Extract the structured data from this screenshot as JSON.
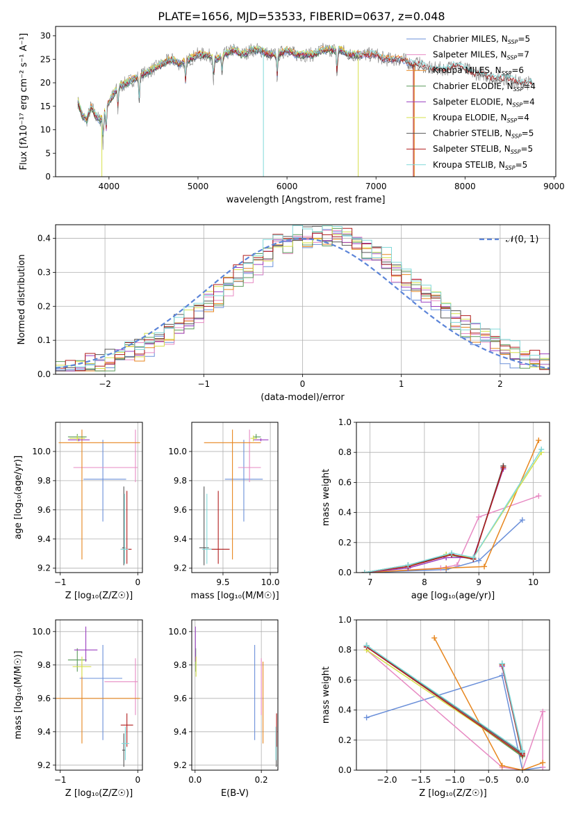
{
  "figure_title": "PLATE=1656, MJD=53533, FIBERID=0637, z=0.048",
  "models": [
    {
      "name": "Chabrier MILES",
      "nssp": "5",
      "color": "#6a8fd9"
    },
    {
      "name": "Salpeter MILES",
      "nssp": "7",
      "color": "#e78ac3"
    },
    {
      "name": "Kroupa MILES",
      "nssp": "6",
      "color": "#e7861e"
    },
    {
      "name": "Chabrier ELODIE",
      "nssp": "4",
      "color": "#5a9a5a"
    },
    {
      "name": "Salpeter ELODIE",
      "nssp": "4",
      "color": "#9a3fbf"
    },
    {
      "name": "Kroupa ELODIE",
      "nssp": "4",
      "color": "#d6e04a"
    },
    {
      "name": "Chabrier STELIB",
      "nssp": "5",
      "color": "#555555"
    },
    {
      "name": "Salpeter STELIB",
      "nssp": "5",
      "color": "#b01c1c"
    },
    {
      "name": "Kroupa STELIB",
      "nssp": "5",
      "color": "#7fd8d8"
    }
  ],
  "chart_data": [
    {
      "id": "spectrum",
      "type": "line",
      "xlabel": "wavelength [Angstrom, rest frame]",
      "ylabel": "Flux [fλ10⁻¹⁷ erg cm⁻² s⁻¹ A⁻¹]",
      "xlim": [
        3400,
        9020
      ],
      "ylim": [
        0,
        32
      ],
      "xticks": [
        4000,
        5000,
        6000,
        7000,
        8000,
        9000
      ],
      "yticks": [
        0,
        5,
        10,
        15,
        20,
        25,
        30
      ],
      "legend_position": "top-right",
      "data_x": [
        3650,
        3700,
        3750,
        3800,
        3850,
        3900,
        3950,
        4000,
        4100,
        4200,
        4300,
        4400,
        4500,
        4600,
        4700,
        4800,
        4900,
        5000,
        5100,
        5200,
        5300,
        5400,
        5500,
        5600,
        5700,
        5800,
        5900,
        6000,
        6100,
        6200,
        6300,
        6400,
        6500,
        6600,
        6700,
        6800,
        6900,
        7000,
        7100,
        7200,
        7300,
        7400,
        7500,
        7600,
        7700,
        7800,
        7900,
        8000,
        8100,
        8200,
        8300,
        8400,
        8500,
        8600,
        8700,
        8760
      ],
      "data_y": [
        16,
        13,
        12,
        15,
        13,
        12,
        14,
        16,
        19,
        20,
        21,
        22,
        23,
        24,
        25,
        24,
        25,
        26,
        26,
        25,
        26,
        27,
        26,
        27,
        27,
        26,
        26,
        27,
        26,
        26,
        26,
        27,
        27,
        27,
        26,
        26,
        26,
        26,
        25,
        25,
        25,
        24,
        24,
        23,
        23,
        23,
        24,
        23,
        22,
        22,
        21,
        21,
        21,
        20,
        20,
        20
      ],
      "absorptions": [
        {
          "x": 3934,
          "depth": 7
        },
        {
          "x": 3968,
          "depth": 6
        },
        {
          "x": 4101,
          "depth": 5
        },
        {
          "x": 4340,
          "depth": 6
        },
        {
          "x": 4861,
          "depth": 5
        },
        {
          "x": 5175,
          "depth": 5
        },
        {
          "x": 5270,
          "depth": 4
        },
        {
          "x": 5890,
          "depth": 5
        },
        {
          "x": 6563,
          "depth": 6
        }
      ],
      "series_drops": [
        {
          "model": "Kroupa ELODIE",
          "x": 3920,
          "to": 0
        },
        {
          "model": "Kroupa STELIB",
          "x": 5735,
          "to": 0
        },
        {
          "model": "Kroupa ELODIE",
          "x": 6800,
          "to": 0
        },
        {
          "model": "Salpeter STELIB",
          "x": 7420,
          "to": 0
        },
        {
          "model": "Kroupa MILES",
          "x": 7430,
          "to": 0
        }
      ],
      "model_x_ranges": [
        [
          3650,
          7400
        ],
        [
          3650,
          7400
        ],
        [
          3650,
          7400
        ],
        [
          3650,
          6800
        ],
        [
          3650,
          6800
        ],
        [
          3650,
          6800
        ],
        [
          3650,
          8760
        ],
        [
          3650,
          8760
        ],
        [
          3650,
          8760
        ]
      ]
    },
    {
      "id": "residuals",
      "type": "line",
      "xlabel": "(data-model)/error",
      "ylabel": "Normed distribution",
      "xlim": [
        -2.5,
        2.5
      ],
      "ylim": [
        0,
        0.44
      ],
      "xticks": [
        -2,
        -1,
        0,
        1,
        2
      ],
      "yticks": [
        0.0,
        0.1,
        0.2,
        0.3,
        0.4
      ],
      "legend": "𝒩(0, 1)",
      "legend_position": "top-right",
      "bin_width": 0.1,
      "curve": "normal",
      "curve_color": "#5b84d8"
    },
    {
      "id": "age-vs-Z",
      "type": "errorbar",
      "xlabel": "Z [log₁₀(Z/Z☉)]",
      "ylabel": "age  [log₁₀(age/yr)]",
      "xlim": [
        -1.06,
        0.06
      ],
      "ylim": [
        9.17,
        10.2
      ],
      "xticks": [
        -1,
        0
      ],
      "yticks": [
        9.2,
        9.4,
        9.6,
        9.8,
        10.0
      ],
      "points": [
        {
          "x": -0.45,
          "y": 9.81,
          "xerr": [
            0.25,
            0.3
          ],
          "yerr": [
            0.29,
            0.27
          ]
        },
        {
          "x": -0.03,
          "y": 9.89,
          "xerr": [
            0.8,
            0.03
          ],
          "yerr": [
            0.1,
            0.26
          ]
        },
        {
          "x": -0.72,
          "y": 10.06,
          "xerr": [
            0.3,
            0.75
          ],
          "yerr": [
            0.8,
            0.09
          ]
        },
        {
          "x": -0.78,
          "y": 10.1,
          "xerr": [
            0.12,
            0.12
          ],
          "yerr": [
            0.01,
            0.02
          ]
        },
        {
          "x": -0.76,
          "y": 10.08,
          "xerr": [
            0.14,
            0.14
          ],
          "yerr": [
            0.01,
            0.01
          ]
        },
        {
          "x": -0.78,
          "y": 10.09,
          "xerr": [
            0.1,
            0.1
          ],
          "yerr": [
            0.02,
            0.02
          ]
        },
        {
          "x": -0.18,
          "y": 9.34,
          "xerr": [
            0.02,
            0.02
          ],
          "yerr": [
            0.12,
            0.42
          ]
        },
        {
          "x": -0.14,
          "y": 9.33,
          "xerr": [
            0.08,
            0.06
          ],
          "yerr": [
            0.1,
            0.4
          ]
        },
        {
          "x": -0.17,
          "y": 9.33,
          "xerr": [
            0.05,
            0.05
          ],
          "yerr": [
            0.1,
            0.38
          ]
        }
      ]
    },
    {
      "id": "age-vs-mass",
      "type": "errorbar",
      "xlabel": "mass [log₁₀(M/M☉)]",
      "ylabel": "",
      "xlim": [
        9.17,
        10.08
      ],
      "ylim": [
        9.17,
        10.2
      ],
      "xticks": [
        9.5,
        10.0
      ],
      "yticks": [
        9.2,
        9.4,
        9.6,
        9.8,
        10.0
      ],
      "points": [
        {
          "x": 9.72,
          "y": 9.81,
          "xerr": [
            0.2,
            0.2
          ],
          "yerr": [
            0.29,
            0.27
          ]
        },
        {
          "x": 9.78,
          "y": 9.89,
          "xerr": [
            0.12,
            0.12
          ],
          "yerr": [
            0.1,
            0.26
          ]
        },
        {
          "x": 9.6,
          "y": 10.06,
          "xerr": [
            0.3,
            0.3
          ],
          "yerr": [
            0.8,
            0.09
          ]
        },
        {
          "x": 9.85,
          "y": 10.1,
          "xerr": [
            0.03,
            0.05
          ],
          "yerr": [
            0.01,
            0.02
          ]
        },
        {
          "x": 9.9,
          "y": 10.08,
          "xerr": [
            0.08,
            0.08
          ],
          "yerr": [
            0.01,
            0.01
          ]
        },
        {
          "x": 9.82,
          "y": 10.09,
          "xerr": [
            0.03,
            0.04
          ],
          "yerr": [
            0.02,
            0.02
          ]
        },
        {
          "x": 9.3,
          "y": 9.34,
          "xerr": [
            0.05,
            0.05
          ],
          "yerr": [
            0.12,
            0.42
          ]
        },
        {
          "x": 9.45,
          "y": 9.33,
          "xerr": [
            0.12,
            0.12
          ],
          "yerr": [
            0.1,
            0.4
          ]
        },
        {
          "x": 9.33,
          "y": 9.33,
          "xerr": [
            0.05,
            0.05
          ],
          "yerr": [
            0.1,
            0.38
          ]
        }
      ]
    },
    {
      "id": "mw-vs-age",
      "type": "line",
      "xlabel": "age  [log₁₀(age/yr)]",
      "ylabel": "mass weight",
      "xlim": [
        6.75,
        10.3
      ],
      "ylim": [
        0,
        1.0
      ],
      "xticks": [
        7,
        8,
        9,
        10
      ],
      "yticks": [
        0.0,
        0.2,
        0.4,
        0.6,
        0.8,
        1.0
      ],
      "series": [
        {
          "model": "Chabrier MILES",
          "x": [
            6.9,
            8.4,
            9.0,
            9.8
          ],
          "y": [
            0.0,
            0.02,
            0.08,
            0.35
          ]
        },
        {
          "model": "Salpeter MILES",
          "x": [
            6.9,
            8.3,
            8.6,
            9.0,
            10.1
          ],
          "y": [
            0.0,
            0.03,
            0.05,
            0.37,
            0.51
          ]
        },
        {
          "model": "Kroupa MILES",
          "x": [
            6.9,
            8.4,
            9.1,
            10.1
          ],
          "y": [
            0.0,
            0.03,
            0.04,
            0.88
          ]
        },
        {
          "model": "Chabrier ELODIE",
          "x": [
            6.9,
            7.7,
            8.4,
            8.9,
            9.45
          ],
          "y": [
            0.0,
            0.04,
            0.12,
            0.09,
            0.71
          ]
        },
        {
          "model": "Salpeter ELODIE",
          "x": [
            6.9,
            7.7,
            8.4,
            8.9,
            9.45
          ],
          "y": [
            0.0,
            0.03,
            0.1,
            0.1,
            0.69
          ]
        },
        {
          "model": "Kroupa ELODIE",
          "x": [
            6.9,
            7.7,
            8.4,
            8.9,
            10.15
          ],
          "y": [
            0.0,
            0.04,
            0.12,
            0.1,
            0.8
          ]
        },
        {
          "model": "Chabrier STELIB",
          "x": [
            6.9,
            7.7,
            8.5,
            8.9,
            9.45
          ],
          "y": [
            0.0,
            0.05,
            0.12,
            0.09,
            0.71
          ]
        },
        {
          "model": "Salpeter STELIB",
          "x": [
            6.9,
            7.7,
            8.5,
            8.9,
            9.45
          ],
          "y": [
            0.0,
            0.04,
            0.12,
            0.09,
            0.7
          ]
        },
        {
          "model": "Kroupa STELIB",
          "x": [
            6.9,
            7.7,
            8.5,
            8.9,
            10.15
          ],
          "y": [
            0.0,
            0.05,
            0.13,
            0.1,
            0.82
          ]
        }
      ]
    },
    {
      "id": "mass-vs-Z",
      "type": "errorbar",
      "xlabel": "Z [log₁₀(Z/Z☉)]",
      "ylabel": "mass [log₁₀(M/M☉)]",
      "xlim": [
        -1.06,
        0.06
      ],
      "ylim": [
        9.17,
        10.07
      ],
      "xticks": [
        -1,
        0
      ],
      "yticks": [
        9.2,
        9.4,
        9.6,
        9.8,
        10.0
      ],
      "points": [
        {
          "x": -0.45,
          "y": 9.72,
          "xerr": [
            0.3,
            0.25
          ],
          "yerr": [
            0.37,
            0.2
          ]
        },
        {
          "x": -0.03,
          "y": 9.7,
          "xerr": [
            0.4,
            0.03
          ],
          "yerr": [
            0.2,
            0.14
          ]
        },
        {
          "x": -0.72,
          "y": 9.6,
          "xerr": [
            0.35,
            0.75
          ],
          "yerr": [
            0.27,
            0.22
          ]
        },
        {
          "x": -0.78,
          "y": 9.83,
          "xerr": [
            0.12,
            0.12
          ],
          "yerr": [
            0.07,
            0.07
          ]
        },
        {
          "x": -0.67,
          "y": 9.89,
          "xerr": [
            0.15,
            0.15
          ],
          "yerr": [
            0.07,
            0.14
          ]
        },
        {
          "x": -0.72,
          "y": 9.79,
          "xerr": [
            0.12,
            0.12
          ],
          "yerr": [
            0.06,
            0.06
          ]
        },
        {
          "x": -0.18,
          "y": 9.29,
          "xerr": [
            0.02,
            0.02
          ],
          "yerr": [
            0.1,
            0.1
          ]
        },
        {
          "x": -0.14,
          "y": 9.44,
          "xerr": [
            0.08,
            0.08
          ],
          "yerr": [
            0.13,
            0.07
          ]
        },
        {
          "x": -0.16,
          "y": 9.33,
          "xerr": [
            0.05,
            0.05
          ],
          "yerr": [
            0.1,
            0.1
          ]
        }
      ]
    },
    {
      "id": "mass-vs-ebv",
      "type": "errorbar",
      "xlabel": "E(B-V)",
      "ylabel": "",
      "xlim": [
        -0.01,
        0.25
      ],
      "ylim": [
        9.17,
        10.07
      ],
      "xticks": [
        0.0,
        0.2
      ],
      "yticks": [
        9.2,
        9.4,
        9.6,
        9.8,
        10.0
      ],
      "points": [
        {
          "x": 0.18,
          "y": 9.72,
          "xerr": [
            0,
            0
          ],
          "yerr": [
            0.37,
            0.2
          ]
        },
        {
          "x": 0.2,
          "y": 9.7,
          "xerr": [
            0,
            0
          ],
          "yerr": [
            0.2,
            0.14
          ]
        },
        {
          "x": 0.205,
          "y": 9.6,
          "xerr": [
            0,
            0
          ],
          "yerr": [
            0.27,
            0.22
          ]
        },
        {
          "x": 0.002,
          "y": 9.83,
          "xerr": [
            0,
            0
          ],
          "yerr": [
            0.07,
            0.07
          ]
        },
        {
          "x": 0.001,
          "y": 9.89,
          "xerr": [
            0,
            0
          ],
          "yerr": [
            0.07,
            0.14
          ]
        },
        {
          "x": 0.003,
          "y": 9.79,
          "xerr": [
            0,
            0
          ],
          "yerr": [
            0.06,
            0.06
          ]
        },
        {
          "x": 0.245,
          "y": 9.29,
          "xerr": [
            0,
            0
          ],
          "yerr": [
            0.1,
            0.1
          ]
        },
        {
          "x": 0.246,
          "y": 9.44,
          "xerr": [
            0,
            0
          ],
          "yerr": [
            0.13,
            0.07
          ]
        },
        {
          "x": 0.244,
          "y": 9.33,
          "xerr": [
            0,
            0
          ],
          "yerr": [
            0.1,
            0.1
          ]
        }
      ]
    },
    {
      "id": "mw-vs-Z",
      "type": "line",
      "xlabel": "Z [log₁₀(Z/Z☉)]",
      "ylabel": "mass weight",
      "xlim": [
        -2.45,
        0.4
      ],
      "ylim": [
        0,
        1.0
      ],
      "xticks": [
        -2.0,
        -1.5,
        -1.0,
        -0.5,
        0.0
      ],
      "yticks": [
        0.0,
        0.2,
        0.4,
        0.6,
        0.8,
        1.0
      ],
      "series": [
        {
          "model": "Chabrier MILES",
          "x": [
            -2.3,
            -0.3,
            0.0,
            0.3
          ],
          "y": [
            0.35,
            0.63,
            0.0,
            0.02
          ]
        },
        {
          "model": "Salpeter MILES",
          "x": [
            -2.3,
            -0.3,
            0.0,
            0.3,
            0.3
          ],
          "y": [
            0.8,
            0.02,
            0.0,
            0.39,
            0.02
          ]
        },
        {
          "model": "Kroupa MILES",
          "x": [
            -1.3,
            -0.3,
            0.0,
            0.3
          ],
          "y": [
            0.88,
            0.03,
            0.0,
            0.05
          ]
        },
        {
          "model": "Chabrier ELODIE",
          "x": [
            -2.3,
            0.0,
            -0.3,
            0.0
          ],
          "y": [
            0.83,
            0.09,
            0.71,
            0.1
          ]
        },
        {
          "model": "Salpeter ELODIE",
          "x": [
            -2.3,
            0.0,
            -0.3,
            0.0
          ],
          "y": [
            0.82,
            0.1,
            0.69,
            0.1
          ]
        },
        {
          "model": "Kroupa ELODIE",
          "x": [
            -2.3,
            0.0,
            -0.3,
            0.0
          ],
          "y": [
            0.8,
            0.1,
            0.7,
            0.12
          ]
        },
        {
          "model": "Chabrier STELIB",
          "x": [
            -2.3,
            0.0,
            -0.3,
            0.0
          ],
          "y": [
            0.83,
            0.11,
            0.71,
            0.12
          ]
        },
        {
          "model": "Salpeter STELIB",
          "x": [
            -2.3,
            0.0,
            -0.3,
            0.0
          ],
          "y": [
            0.82,
            0.1,
            0.7,
            0.11
          ]
        },
        {
          "model": "Kroupa STELIB",
          "x": [
            -2.3,
            0.0,
            -0.3,
            0.0
          ],
          "y": [
            0.83,
            0.12,
            0.71,
            0.13
          ]
        }
      ]
    }
  ]
}
